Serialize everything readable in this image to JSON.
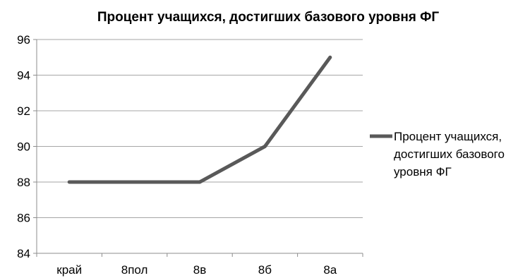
{
  "chart_data": {
    "type": "line",
    "title": "Процент учащихся, достигших базового уровня ФГ",
    "categories": [
      "край",
      "8пол",
      "8в",
      "8б",
      "8а"
    ],
    "series": [
      {
        "name": "Процент учащихся, достигших базового уровня ФГ",
        "legend_lines": [
          "Процент учащихся,",
          "достигших базового",
          "уровня ФГ"
        ],
        "values": [
          88,
          88,
          88,
          90,
          95
        ],
        "color": "#595959"
      }
    ],
    "xlabel": "",
    "ylabel": "",
    "ylim": [
      84,
      96
    ],
    "yticks": [
      84,
      86,
      88,
      90,
      92,
      94,
      96
    ],
    "grid": true,
    "legend_position": "right"
  }
}
